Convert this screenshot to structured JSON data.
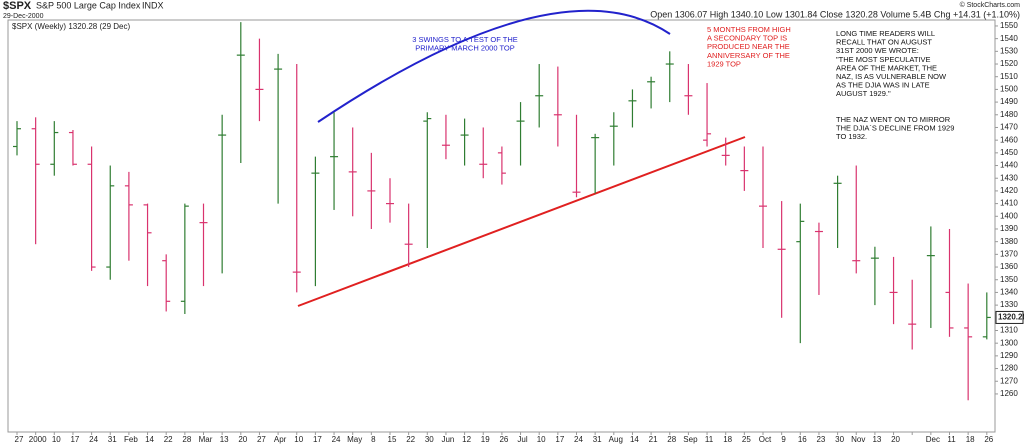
{
  "header": {
    "symbol": "$SPX",
    "name": "S&P 500 Large Cap Index",
    "exchange": "INDX",
    "date": "29-Dec-2000",
    "credit": "© StockCharts.com",
    "quote": "Open 1306.07 High 1340.10 Low 1301.84 Close 1320.28 Volume 5.4B Chg +14.31 (+1.10%)"
  },
  "chart_data": {
    "type": "ohlc",
    "legend": "$SPX (Weekly) 1320.28 (29 Dec)",
    "categories": [
      "27",
      "2000",
      "10",
      "17",
      "24",
      "31",
      "Feb",
      "14",
      "22",
      "28",
      "Mar",
      "13",
      "20",
      "27",
      "Apr",
      "10",
      "17",
      "24",
      "May",
      "8",
      "15",
      "22",
      "30",
      "Jun",
      "12",
      "19",
      "26",
      "Jul",
      "10",
      "17",
      "24",
      "31",
      "Aug",
      "14",
      "21",
      "28",
      "Sep",
      "11",
      "18",
      "25",
      "Oct",
      "9",
      "16",
      "23",
      "30",
      "Nov",
      "13",
      "20",
      null,
      "Dec",
      "11",
      "18",
      "26"
    ],
    "open": [
      1455,
      1469,
      1441,
      1466,
      1441,
      1360,
      1424,
      1409,
      1365,
      1333,
      1395,
      1464,
      1527,
      1500,
      1516,
      1356,
      1434,
      1447,
      1435,
      1420,
      1410,
      1378,
      1475,
      1456,
      1464,
      1441,
      1450,
      1475,
      1495,
      1480,
      1419,
      1462,
      1471,
      1491,
      1506,
      1520,
      1495,
      1460,
      1448,
      1436,
      1408,
      1374,
      1380,
      1388,
      1426,
      1365,
      1367,
      1340,
      1315,
      1369,
      1340,
      1312,
      1305
    ],
    "high": [
      1475,
      1478,
      1475,
      1468,
      1455,
      1440,
      1435,
      1410,
      1370,
      1410,
      1410,
      1480,
      1553,
      1540,
      1528,
      1520,
      1447,
      1482,
      1470,
      1450,
      1430,
      1410,
      1482,
      1480,
      1477,
      1470,
      1455,
      1490,
      1520,
      1518,
      1480,
      1465,
      1482,
      1500,
      1510,
      1530,
      1520,
      1505,
      1462,
      1455,
      1455,
      1412,
      1410,
      1395,
      1432,
      1440,
      1376,
      1368,
      1350,
      1392,
      1390,
      1347,
      1340
    ],
    "low": [
      1448,
      1378,
      1432,
      1440,
      1357,
      1350,
      1365,
      1345,
      1325,
      1323,
      1345,
      1355,
      1442,
      1475,
      1410,
      1340,
      1345,
      1405,
      1400,
      1390,
      1395,
      1360,
      1375,
      1445,
      1440,
      1430,
      1425,
      1440,
      1470,
      1455,
      1415,
      1418,
      1440,
      1470,
      1485,
      1490,
      1480,
      1455,
      1440,
      1420,
      1375,
      1320,
      1300,
      1338,
      1375,
      1355,
      1330,
      1315,
      1295,
      1312,
      1305,
      1255,
      1303
    ],
    "close": [
      1469,
      1441,
      1466,
      1441,
      1360,
      1424,
      1409,
      1387,
      1333,
      1408,
      1395,
      1464,
      1527,
      1500,
      1516,
      1356,
      1434,
      1447,
      1435,
      1420,
      1410,
      1378,
      1477,
      1456,
      1464,
      1441,
      1434,
      1475,
      1495,
      1480,
      1419,
      1462,
      1471,
      1491,
      1506,
      1520,
      1495,
      1465,
      1448,
      1436,
      1408,
      1374,
      1396,
      1388,
      1426,
      1365,
      1367,
      1340,
      1315,
      1369,
      1312,
      1305,
      1320.28
    ],
    "up_color": "#2f7d32",
    "down_color": "#d9336e",
    "ylim": [
      1230,
      1561
    ],
    "yticks": [
      1260,
      1270,
      1280,
      1290,
      1300,
      1310,
      1320,
      1330,
      1340,
      1350,
      1360,
      1370,
      1380,
      1390,
      1400,
      1410,
      1420,
      1430,
      1440,
      1450,
      1460,
      1470,
      1480,
      1490,
      1500,
      1510,
      1520,
      1530,
      1540,
      1550
    ],
    "last_price": 1320.28,
    "annotations": [
      {
        "color": "#2222cc",
        "lines": [
          "3 SWINGS TO A TEST OF THE",
          "PRIMARY MARCH 2000 TOP"
        ]
      },
      {
        "color": "#e02020",
        "lines": [
          "5 MONTHS FROM HIGH",
          "A SECONDARY TOP IS",
          "PRODUCED NEAR THE",
          "ANNIVERSARY OF THE",
          "1929 TOP"
        ]
      },
      {
        "color": "#111111",
        "lines": [
          "LONG TIME READERS WILL",
          "RECALL THAT ON AUGUST",
          "31ST 2000 WE WROTE:",
          "\"THE MOST SPECULATIVE",
          "AREA OF THE MARKET, THE",
          "NAZ, IS AS VULNERABLE NOW",
          "AS THE DJIA WAS IN LATE",
          "AUGUST 1929.\""
        ]
      },
      {
        "color": "#111111",
        "lines": [
          "THE NAZ WENT ON TO MIRROR",
          "THE DJIA`S DECLINE FROM 1929",
          "TO 1932."
        ]
      }
    ]
  }
}
